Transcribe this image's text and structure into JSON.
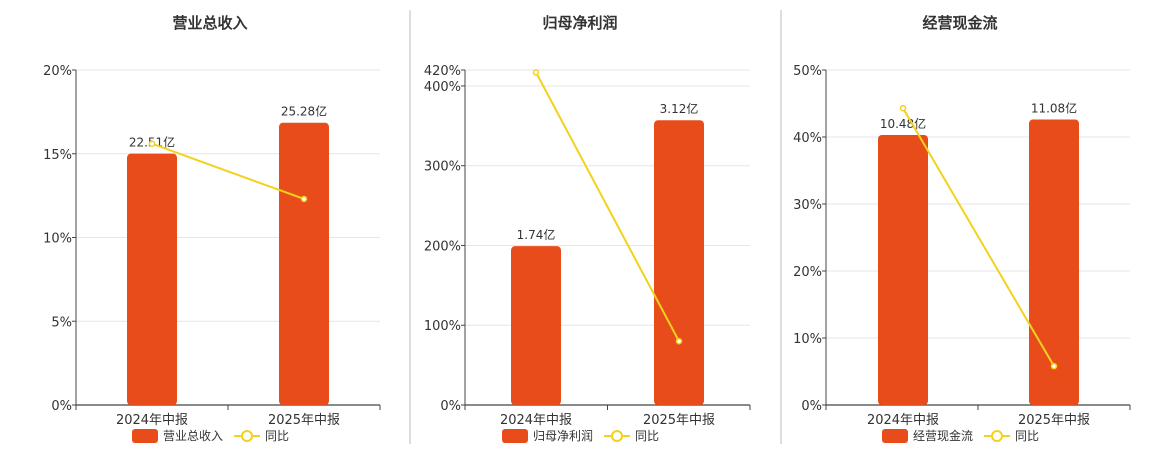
{
  "colors": {
    "bar": "#e84c1a",
    "line": "#f2d21c",
    "grid": "#e6e6e6",
    "axis": "#444444",
    "divider": "#bbbbbb"
  },
  "chart_data": [
    {
      "type": "bar",
      "title": "营业总收入",
      "categories": [
        "2024年中报",
        "2025年中报"
      ],
      "bar_values": [
        22.51,
        25.28
      ],
      "bar_labels": [
        "22.51亿",
        "25.28亿"
      ],
      "bar_series_name": "营业总收入",
      "line_series_name": "同比",
      "line_values_percent": [
        15.6,
        12.3
      ],
      "y_ticks": [
        "0%",
        "5%",
        "10%",
        "15%",
        "20%"
      ],
      "y_tick_values": [
        0,
        5,
        10,
        15,
        20
      ],
      "ylim": [
        0,
        20
      ],
      "bar_max": 30.0,
      "grid": true,
      "legend_position": "bottom"
    },
    {
      "type": "bar",
      "title": "归母净利润",
      "categories": [
        "2024年中报",
        "2025年中报"
      ],
      "bar_values": [
        1.74,
        3.12
      ],
      "bar_labels": [
        "1.74亿",
        "3.12亿"
      ],
      "bar_series_name": "归母净利润",
      "line_series_name": "同比",
      "line_values_percent": [
        417,
        80
      ],
      "y_ticks": [
        "0%",
        "100%",
        "200%",
        "300%",
        "400%",
        "420%"
      ],
      "y_tick_values": [
        0,
        100,
        200,
        300,
        400,
        420
      ],
      "ylim": [
        0,
        420
      ],
      "bar_max": 3.67,
      "grid": true,
      "legend_position": "bottom"
    },
    {
      "type": "bar",
      "title": "经营现金流",
      "categories": [
        "2024年中报",
        "2025年中报"
      ],
      "bar_values": [
        10.48,
        11.08
      ],
      "bar_labels": [
        "10.48亿",
        "11.08亿"
      ],
      "bar_series_name": "经营现金流",
      "line_series_name": "同比",
      "line_values_percent": [
        44.3,
        5.8
      ],
      "y_ticks": [
        "0%",
        "10%",
        "20%",
        "30%",
        "40%",
        "50%"
      ],
      "y_tick_values": [
        0,
        10,
        20,
        30,
        40,
        50
      ],
      "ylim": [
        0,
        50
      ],
      "bar_max": 13.0,
      "grid": true,
      "legend_position": "bottom"
    }
  ]
}
